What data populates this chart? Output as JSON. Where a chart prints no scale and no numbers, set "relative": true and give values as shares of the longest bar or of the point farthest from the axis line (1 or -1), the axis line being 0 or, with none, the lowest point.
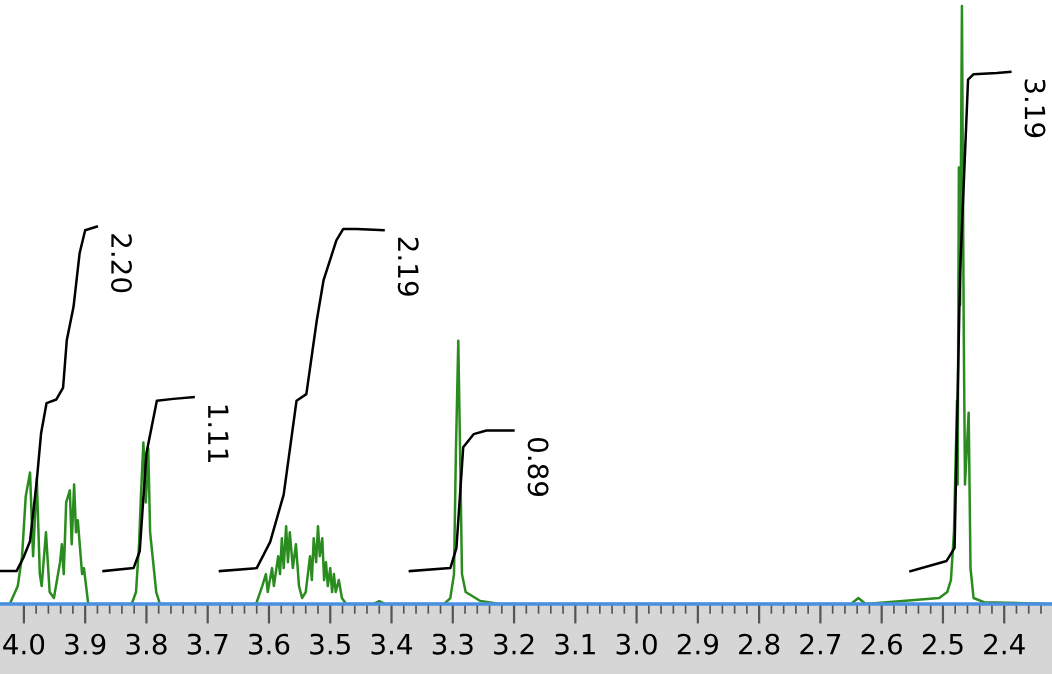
{
  "chart_data": {
    "type": "line",
    "relative": true,
    "tick_labels": "x",
    "grid": false,
    "marker": "none",
    "line_style": "solid",
    "xlim": [
      4.039,
      2.322
    ],
    "xticks": [
      {
        "value": 4.0,
        "label": "4.0"
      },
      {
        "value": 3.98,
        "label": null
      },
      {
        "value": 3.96,
        "label": null
      },
      {
        "value": 3.94,
        "label": null
      },
      {
        "value": 3.92,
        "label": null
      },
      3.9,
      {
        "value": 3.88,
        "label": null
      },
      {
        "value": 3.86,
        "label": null
      },
      {
        "value": 3.84,
        "label": null
      },
      {
        "value": 3.82,
        "label": null
      },
      3.8,
      {
        "value": 3.78,
        "label": null
      },
      {
        "value": 3.76,
        "label": null
      },
      {
        "value": 3.74,
        "label": null
      },
      {
        "value": 3.72,
        "label": null
      },
      3.7,
      {
        "value": 3.68,
        "label": null
      },
      {
        "value": 3.66,
        "label": null
      },
      {
        "value": 3.64,
        "label": null
      },
      {
        "value": 3.62,
        "label": null
      },
      3.6,
      {
        "value": 3.58,
        "label": null
      },
      {
        "value": 3.56,
        "label": null
      },
      {
        "value": 3.54,
        "label": null
      },
      {
        "value": 3.52,
        "label": null
      },
      3.5,
      {
        "value": 3.48,
        "label": null
      },
      {
        "value": 3.46,
        "label": null
      },
      {
        "value": 3.44,
        "label": null
      },
      {
        "value": 3.42,
        "label": null
      },
      3.4,
      {
        "value": 3.38,
        "label": null
      },
      {
        "value": 3.36,
        "label": null
      },
      {
        "value": 3.34,
        "label": null
      },
      {
        "value": 3.32,
        "label": null
      },
      3.3,
      {
        "value": 3.28,
        "label": null
      },
      {
        "value": 3.26,
        "label": null
      },
      {
        "value": 3.24,
        "label": null
      },
      {
        "value": 3.22,
        "label": null
      },
      3.2,
      {
        "value": 3.18,
        "label": null
      },
      {
        "value": 3.16,
        "label": null
      },
      {
        "value": 3.14,
        "label": null
      },
      {
        "value": 3.12,
        "label": null
      },
      3.1,
      {
        "value": 3.08,
        "label": null
      },
      {
        "value": 3.06,
        "label": null
      },
      {
        "value": 3.04,
        "label": null
      },
      {
        "value": 3.02,
        "label": null
      },
      {
        "value": 3.0,
        "label": "3.0"
      },
      {
        "value": 2.98,
        "label": null
      },
      {
        "value": 2.96,
        "label": null
      },
      {
        "value": 2.94,
        "label": null
      },
      {
        "value": 2.92,
        "label": null
      },
      2.9,
      {
        "value": 2.88,
        "label": null
      },
      {
        "value": 2.86,
        "label": null
      },
      {
        "value": 2.84,
        "label": null
      },
      {
        "value": 2.82,
        "label": null
      },
      2.8,
      {
        "value": 2.78,
        "label": null
      },
      {
        "value": 2.76,
        "label": null
      },
      {
        "value": 2.74,
        "label": null
      },
      {
        "value": 2.72,
        "label": null
      },
      2.7,
      {
        "value": 2.68,
        "label": null
      },
      {
        "value": 2.66,
        "label": null
      },
      {
        "value": 2.64,
        "label": null
      },
      {
        "value": 2.62,
        "label": null
      },
      2.6,
      {
        "value": 2.58,
        "label": null
      },
      {
        "value": 2.56,
        "label": null
      },
      {
        "value": 2.54,
        "label": null
      },
      {
        "value": 2.52,
        "label": null
      },
      2.5,
      {
        "value": 2.48,
        "label": null
      },
      {
        "value": 2.46,
        "label": null
      },
      {
        "value": 2.44,
        "label": null
      },
      {
        "value": 2.42,
        "label": null
      },
      2.4,
      {
        "value": 2.38,
        "label": null
      },
      {
        "value": 2.36,
        "label": null
      },
      {
        "value": 2.34,
        "label": null
      }
    ],
    "series": [
      {
        "color": "#2a8c1e",
        "x": [
          4.039,
          4.023,
          4.01,
          4.003,
          3.997,
          3.99,
          3.985,
          3.979,
          3.974,
          3.971,
          3.964,
          3.958,
          3.951,
          3.941,
          3.938,
          3.935,
          3.931,
          3.925,
          3.922,
          3.918,
          3.915,
          3.912,
          3.905,
          3.902,
          3.895,
          3.824,
          3.817,
          3.812,
          3.809,
          3.805,
          3.801,
          3.797,
          3.794,
          3.791,
          3.784,
          3.778,
          3.621,
          3.611,
          3.605,
          3.602,
          3.595,
          3.592,
          3.585,
          3.582,
          3.579,
          3.576,
          3.572,
          3.569,
          3.566,
          3.561,
          3.556,
          3.551,
          3.546,
          3.54,
          3.533,
          3.53,
          3.527,
          3.523,
          3.52,
          3.517,
          3.513,
          3.51,
          3.507,
          3.504,
          3.5,
          3.497,
          3.494,
          3.491,
          3.486,
          3.481,
          3.474,
          3.43,
          3.42,
          3.41,
          3.314,
          3.304,
          3.298,
          3.295,
          3.291,
          3.288,
          3.285,
          3.279,
          3.255,
          3.223,
          2.65,
          2.638,
          2.626,
          2.506,
          2.493,
          2.487,
          2.482,
          2.477,
          2.476,
          2.474,
          2.472,
          2.469,
          2.466,
          2.464,
          2.458,
          2.455,
          2.45,
          2.433,
          2.322
        ],
        "values": [
          0.0,
          0.0,
          0.03,
          0.08,
          0.18,
          0.22,
          0.08,
          0.21,
          0.05,
          0.03,
          0.12,
          0.02,
          0.01,
          0.07,
          0.1,
          0.05,
          0.17,
          0.19,
          0.1,
          0.2,
          0.12,
          0.14,
          0.05,
          0.06,
          0.0,
          0.0,
          0.02,
          0.1,
          0.18,
          0.27,
          0.17,
          0.26,
          0.12,
          0.09,
          0.02,
          0.0,
          0.0,
          0.03,
          0.05,
          0.02,
          0.06,
          0.03,
          0.08,
          0.05,
          0.11,
          0.06,
          0.13,
          0.07,
          0.12,
          0.06,
          0.1,
          0.03,
          0.01,
          0.02,
          0.08,
          0.04,
          0.11,
          0.07,
          0.13,
          0.08,
          0.11,
          0.04,
          0.07,
          0.03,
          0.06,
          0.02,
          0.05,
          0.02,
          0.04,
          0.01,
          0.0,
          0.0,
          0.005,
          0.0,
          0.0,
          0.01,
          0.05,
          0.25,
          0.44,
          0.25,
          0.05,
          0.02,
          0.005,
          0.0,
          0.0,
          0.01,
          0.0,
          0.01,
          0.02,
          0.04,
          0.12,
          0.34,
          0.2,
          0.73,
          0.5,
          1.0,
          0.45,
          0.2,
          0.32,
          0.06,
          0.01,
          0.003,
          0.0
        ]
      },
      {
        "color": "#000000",
        "x": [
          4.039,
          4.012,
          4.001,
          3.99,
          3.979,
          3.972,
          3.963,
          3.947,
          3.936,
          3.93,
          3.919,
          3.909,
          3.9,
          3.881
        ],
        "values": [
          0.055,
          0.055,
          0.077,
          0.105,
          0.206,
          0.285,
          0.336,
          0.342,
          0.362,
          0.441,
          0.497,
          0.587,
          0.625,
          0.631
        ]
      },
      {
        "color": "#000000",
        "x": [
          3.87,
          3.821,
          3.811,
          3.8,
          3.783,
          3.756,
          3.723
        ],
        "values": [
          0.055,
          0.06,
          0.088,
          0.252,
          0.34,
          0.343,
          0.346
        ]
      },
      {
        "color": "#000000",
        "x": [
          3.68,
          3.62,
          3.598,
          3.576,
          3.555,
          3.539,
          3.522,
          3.511,
          3.49,
          3.479,
          3.457,
          3.413
        ],
        "values": [
          0.055,
          0.06,
          0.104,
          0.183,
          0.34,
          0.351,
          0.474,
          0.541,
          0.608,
          0.627,
          0.627,
          0.625
        ]
      },
      {
        "color": "#000000",
        "x": [
          3.37,
          3.304,
          3.294,
          3.283,
          3.266,
          3.245,
          3.201
        ],
        "values": [
          0.055,
          0.06,
          0.094,
          0.262,
          0.284,
          0.29,
          0.29
        ]
      },
      {
        "color": "#000000",
        "x": [
          2.553,
          2.494,
          2.481,
          2.472,
          2.459,
          2.45,
          2.412,
          2.39
        ],
        "values": [
          0.055,
          0.072,
          0.094,
          0.554,
          0.877,
          0.886,
          0.888,
          0.89
        ]
      }
    ],
    "annotations": [
      "2.20",
      "1.11",
      "2.19",
      "0.89",
      "3.19"
    ]
  }
}
